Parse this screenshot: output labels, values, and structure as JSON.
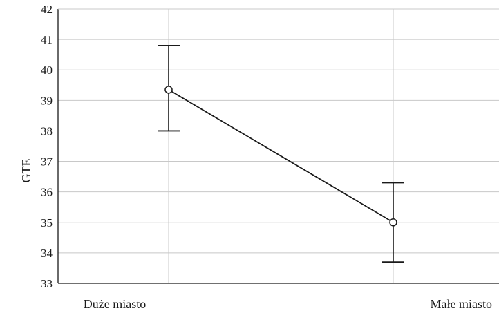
{
  "chart_data": {
    "type": "line",
    "title": "",
    "xlabel": "",
    "ylabel": "GTE",
    "categories": [
      "Duże miasto",
      "Małe miasto"
    ],
    "values": [
      39.35,
      35.0
    ],
    "error_upper": [
      40.8,
      36.3
    ],
    "error_lower": [
      38.0,
      33.7
    ],
    "ylim": [
      33,
      42
    ],
    "yticks": [
      33,
      34,
      35,
      36,
      37,
      38,
      39,
      40,
      41,
      42
    ],
    "grid": true,
    "legend": "none",
    "colors": {
      "line": "#1a1a1a",
      "grid": "#c8c8c8",
      "axis": "#1a1a1a",
      "marker_fill": "#ffffff"
    }
  }
}
